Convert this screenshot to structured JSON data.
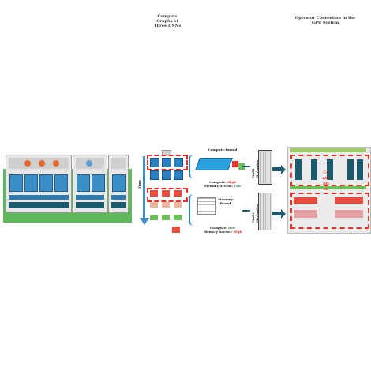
{
  "titles": {
    "compute_graphs": "Compute Graphs of Three DNNs",
    "operator_contention": "Operator Contention in the GPU System"
  },
  "labels": {
    "time_axis": "Time",
    "compute_bound": "Compute-Bound",
    "memory_bound": "Memory-Bound",
    "multi_streaming_1": "Multi-Streaming",
    "multi_streaming_2": "Multi-Streaming"
  },
  "compute_group": {
    "prefix_compute": "Compute: ",
    "value_compute": "High",
    "prefix_memory": "Memory Access: ",
    "value_memory": "Low"
  },
  "memory_group": {
    "prefix_compute": "Compute: ",
    "value_compute": "Low",
    "prefix_memory": "Memory Access: ",
    "value_memory": "High"
  },
  "contention_text": "Contention",
  "colors": {
    "accent_red": "#e8312a",
    "gpu_blue": "#2c7fbf",
    "arrow_teal": "#1c5a6e",
    "board_green": "#5fb85a"
  }
}
